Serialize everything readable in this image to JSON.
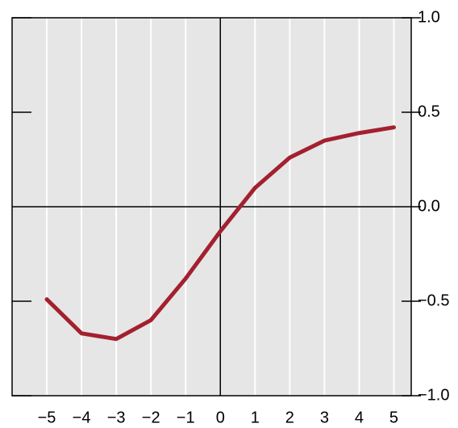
{
  "chart_data": {
    "type": "line",
    "x": [
      -5,
      -4,
      -3,
      -2,
      -1,
      0,
      1,
      2,
      3,
      4,
      5
    ],
    "series": [
      {
        "color": "#a3202f",
        "values": [
          -0.49,
          -0.67,
          -0.7,
          -0.6,
          -0.38,
          -0.13,
          0.1,
          0.26,
          0.35,
          0.39,
          0.42
        ]
      }
    ],
    "xlim": [
      -6,
      5.5
    ],
    "xticks": [
      {
        "value": -5,
        "label": "−5"
      },
      {
        "value": -4,
        "label": "−4"
      },
      {
        "value": -3,
        "label": "−3"
      },
      {
        "value": -2,
        "label": "−2"
      },
      {
        "value": -1,
        "label": "−1"
      },
      0,
      1,
      2,
      3,
      4,
      5
    ],
    "ylim": [
      -1,
      1
    ],
    "yticks": [
      {
        "value": 1,
        "label": "1.0"
      },
      {
        "value": 0.5,
        "label": "0.5"
      },
      {
        "value": 0,
        "label": "0.0"
      },
      {
        "value": -0.5,
        "label": "−0.5"
      },
      {
        "value": -1,
        "label": "−1.0"
      }
    ],
    "grid": true
  }
}
